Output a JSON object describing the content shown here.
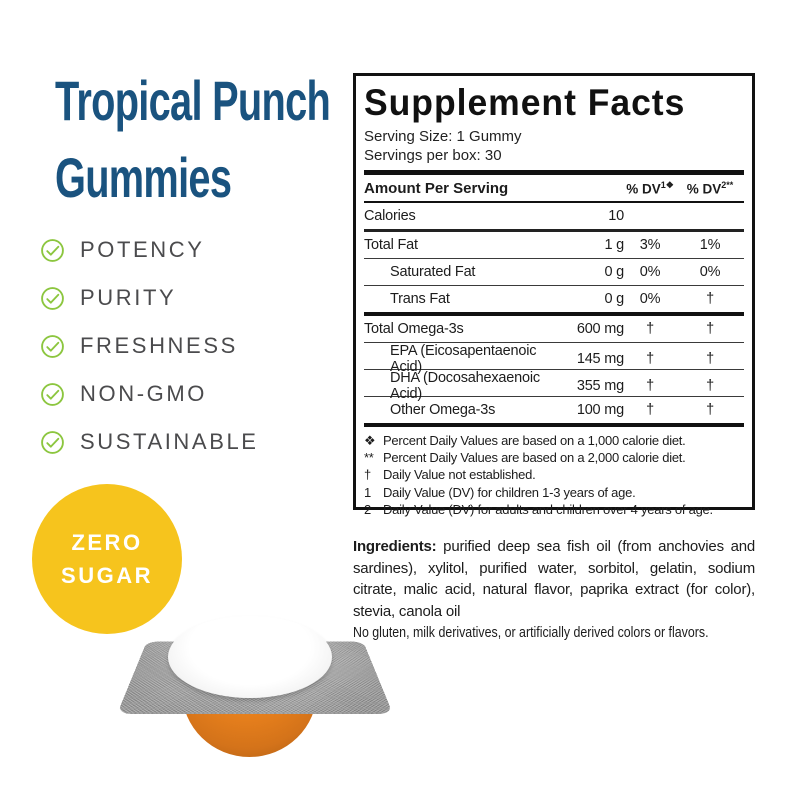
{
  "product": {
    "title_line1": "Tropical Punch",
    "title_line2": "Gummies",
    "title_color": "#1a537f"
  },
  "features": {
    "check_color": "#8cc63f",
    "text_color": "#4b4b4d",
    "items": [
      "POTENCY",
      "PURITY",
      "FRESHNESS",
      "NON-GMO",
      "SUSTAINABLE"
    ]
  },
  "badge": {
    "line1": "ZERO",
    "line2": "SUGAR",
    "bg_color": "#f6c41d",
    "text_color": "#ffffff"
  },
  "supplement_facts": {
    "title": "Supplement Facts",
    "serving_size": "Serving Size: 1 Gummy",
    "servings_per_box": "Servings per box: 30",
    "header": {
      "amount": "Amount Per Serving",
      "dv1_base": "% DV",
      "dv1_sup": "1❖",
      "dv2_base": "% DV",
      "dv2_sup": "2**"
    },
    "rows": [
      {
        "name": "Calories",
        "amount": "10",
        "dv1": "",
        "dv2": "",
        "indent": false,
        "sep": "mid"
      },
      {
        "name": "Total Fat",
        "amount": "1 g",
        "dv1": "3%",
        "dv2": "1%",
        "indent": false,
        "sep": "thin"
      },
      {
        "name": "Saturated Fat",
        "amount": "0 g",
        "dv1": "0%",
        "dv2": "0%",
        "indent": true,
        "sep": "thin"
      },
      {
        "name": "Trans Fat",
        "amount": "0 g",
        "dv1": "0%",
        "dv2": "†",
        "indent": true,
        "sep": "thick"
      },
      {
        "name": "Total Omega-3s",
        "amount": "600 mg",
        "dv1": "†",
        "dv2": "†",
        "indent": false,
        "sep": "thin"
      },
      {
        "name": "EPA (Eicosapentaenoic Acid)",
        "amount": "145 mg",
        "dv1": "†",
        "dv2": "†",
        "indent": true,
        "sep": "thin"
      },
      {
        "name": "DHA (Docosahexaenoic Acid)",
        "amount": "355 mg",
        "dv1": "†",
        "dv2": "†",
        "indent": true,
        "sep": "thin"
      },
      {
        "name": "Other Omega-3s",
        "amount": "100 mg",
        "dv1": "†",
        "dv2": "†",
        "indent": true,
        "sep": "thick"
      }
    ],
    "footnotes": [
      {
        "symbol": "❖",
        "text": "Percent Daily Values are based on a 1,000 calorie diet."
      },
      {
        "symbol": "**",
        "text": "Percent Daily Values are based on a 2,000 calorie diet."
      },
      {
        "symbol": "†",
        "text": "Daily Value not established."
      },
      {
        "symbol": "1",
        "text": "Daily Value (DV) for children 1-3 years of age."
      },
      {
        "symbol": "2",
        "text": "Daily Value (DV) for adults and children over 4 years of age."
      }
    ]
  },
  "ingredients": {
    "label": "Ingredients:",
    "text": "purified deep sea fish oil (from anchovies and sardines), xylitol, purified water, sorbitol, gelatin, sodium citrate, malic acid, natural flavor, paprika extract (for color), stevia, canola oil",
    "no_claim": "No gluten, milk derivatives, or artificially derived colors or flavors."
  },
  "gummy_image": {
    "pack_color": "#a6a6a6",
    "dome_color": "#ffffff",
    "gummy_color": "#e67f1c"
  }
}
